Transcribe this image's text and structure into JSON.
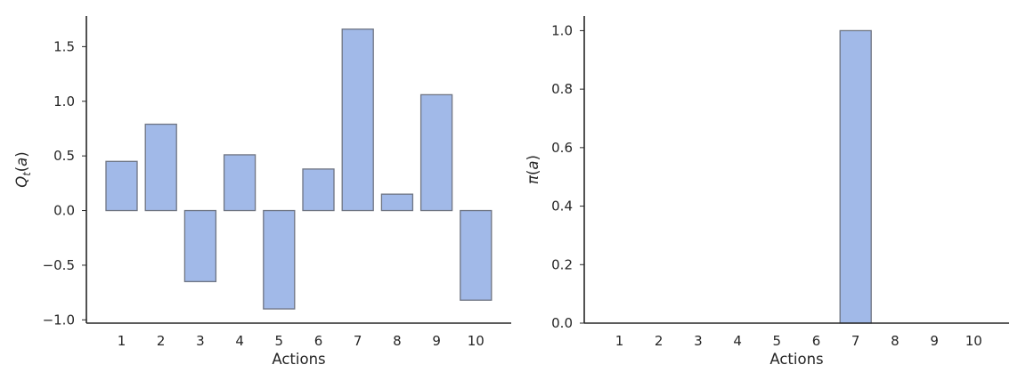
{
  "chart_data": [
    {
      "type": "bar",
      "categories": [
        "1",
        "2",
        "3",
        "4",
        "5",
        "6",
        "7",
        "8",
        "9",
        "10"
      ],
      "values": [
        0.45,
        0.79,
        -0.65,
        0.51,
        -0.9,
        0.38,
        1.66,
        0.15,
        1.06,
        -0.82
      ],
      "xlabel": "Actions",
      "ylabel": "Q_t(a)",
      "ylim": [
        -1.03,
        1.78
      ],
      "yticks": [
        -1.0,
        -0.5,
        0.0,
        0.5,
        1.0,
        1.5
      ],
      "ytick_labels": [
        "−1.0",
        "−0.5",
        "0.0",
        "0.5",
        "1.0",
        "1.5"
      ],
      "bar_color": "#a1b9e8",
      "edge_color": "#6e7482",
      "grid": false
    },
    {
      "type": "bar",
      "categories": [
        "1",
        "2",
        "3",
        "4",
        "5",
        "6",
        "7",
        "8",
        "9",
        "10"
      ],
      "values": [
        0,
        0,
        0,
        0,
        0,
        0,
        1.0,
        0,
        0,
        0
      ],
      "xlabel": "Actions",
      "ylabel": "π(a)",
      "ylim": [
        0.0,
        1.05
      ],
      "yticks": [
        0.0,
        0.2,
        0.4,
        0.6,
        0.8,
        1.0
      ],
      "ytick_labels": [
        "0.0",
        "0.2",
        "0.4",
        "0.6",
        "0.8",
        "1.0"
      ],
      "bar_color": "#a1b9e8",
      "edge_color": "#6e7482",
      "grid": false
    }
  ]
}
